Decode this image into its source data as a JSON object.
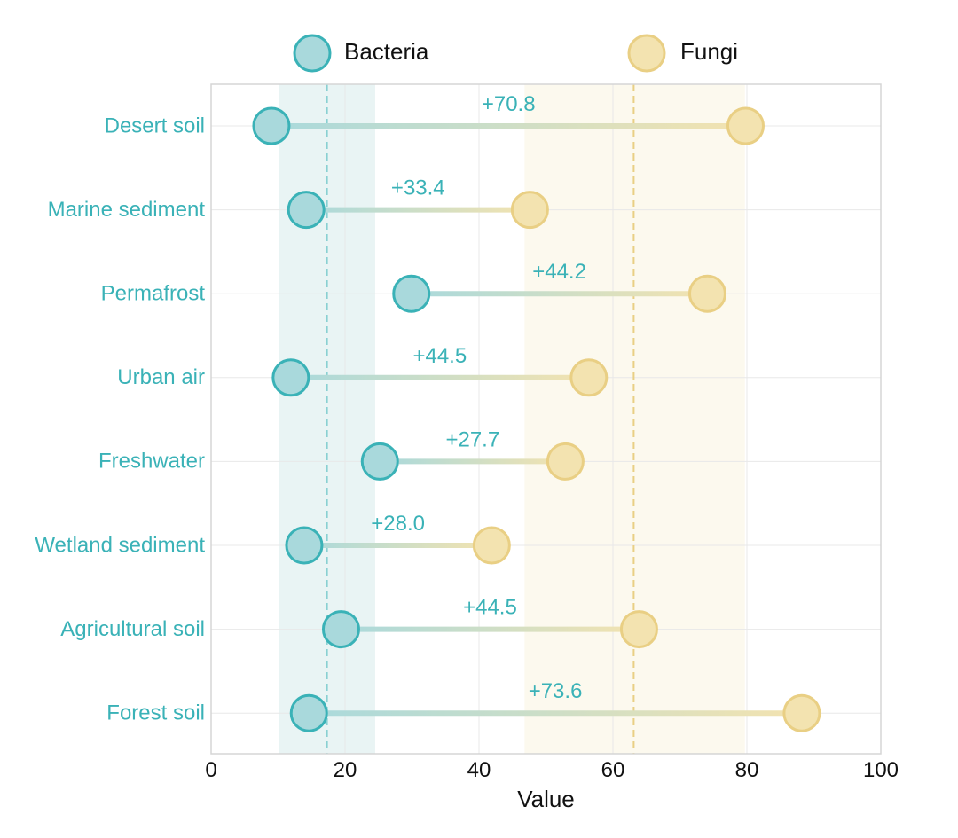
{
  "chart_data": {
    "type": "dumbbell",
    "title": "",
    "xlabel": "Value",
    "ylabel": "",
    "xlim": [
      0,
      100
    ],
    "xticks": [
      0,
      20,
      40,
      60,
      80,
      100
    ],
    "grid": true,
    "legend_position": "top",
    "categories": [
      "Desert soil",
      "Marine sediment",
      "Permafrost",
      "Urban air",
      "Freshwater",
      "Wetland sediment",
      "Agricultural soil",
      "Forest soil"
    ],
    "series": [
      {
        "name": "Bacteria",
        "values": [
          9.0,
          14.2,
          29.9,
          11.9,
          25.2,
          13.9,
          19.4,
          14.6
        ]
      },
      {
        "name": "Fungi",
        "values": [
          79.8,
          47.6,
          74.1,
          56.4,
          52.9,
          41.9,
          63.9,
          88.2
        ]
      }
    ],
    "difference_labels": [
      "+70.8",
      "+33.4",
      "+44.2",
      "+44.5",
      "+27.7",
      "+28.0",
      "+44.5",
      "+73.6"
    ],
    "reference": {
      "bacteria_mean": 17.3,
      "fungi_mean": 63.1,
      "bacteria_band": [
        10.1,
        24.5
      ],
      "fungi_band": [
        46.8,
        79.7
      ]
    },
    "colors": {
      "bacteria": "#3ab2b7",
      "bacteria_fill": "#a9d9dc",
      "fungi": "#e9cf84",
      "fungi_fill": "#f3e3b0",
      "label": "#3ab2b7",
      "band_bacteria": "#e9f4f4",
      "band_fungi": "#fcf9ee",
      "grid": "#e8e8e8",
      "frame": "#d5d5d5"
    }
  }
}
